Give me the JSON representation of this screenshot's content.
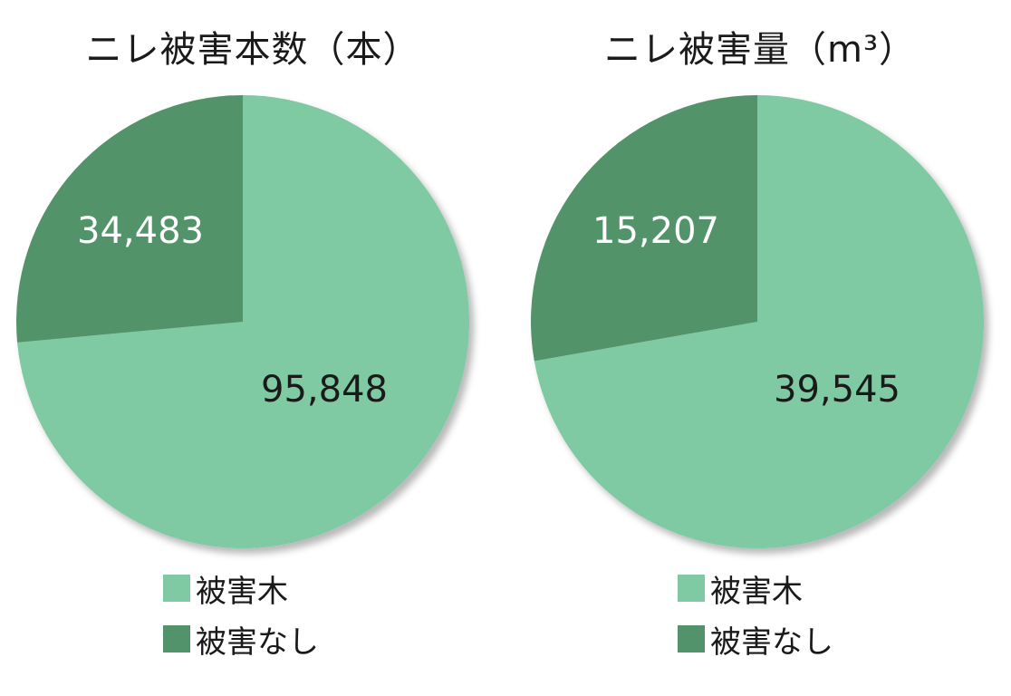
{
  "chart_data": [
    {
      "type": "pie",
      "title": "ニレ被害本数（本）",
      "slices": [
        {
          "label": "被害木",
          "value": 95848,
          "value_label": "95,848",
          "color": "#7fc9a3",
          "text_color": "#1a1a1a"
        },
        {
          "label": "被害なし",
          "value": 34483,
          "value_label": "34,483",
          "color": "#52936b",
          "text_color": "#ffffff"
        }
      ],
      "legend": "bottom"
    },
    {
      "type": "pie",
      "title": "ニレ被害量（m³）",
      "slices": [
        {
          "label": "被害木",
          "value": 39545,
          "value_label": "39,545",
          "color": "#7fc9a3",
          "text_color": "#1a1a1a"
        },
        {
          "label": "被害なし",
          "value": 15207,
          "value_label": "15,207",
          "color": "#52936b",
          "text_color": "#ffffff"
        }
      ],
      "legend": "bottom"
    }
  ]
}
